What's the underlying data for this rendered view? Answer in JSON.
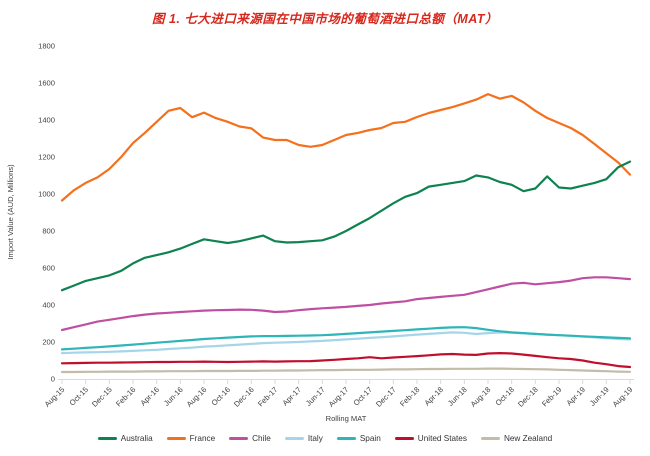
{
  "title": "图 1. 七大进口来源国在中国市场的葡萄酒进口总额（MAT）",
  "title_color": "#d7281d",
  "axis_color": "#d9d9d9",
  "chart_data": {
    "type": "line",
    "title": "图 1. 七大进口来源国在中国市场的葡萄酒进口总额（MAT）",
    "ylabel": "Import Value (AUD, Millions)",
    "xlabel": "Rolling MAT",
    "ylim": [
      0,
      1800
    ],
    "y_ticks": [
      0,
      200,
      400,
      600,
      800,
      1000,
      1200,
      1400,
      1600,
      1800
    ],
    "x_tick_labels": [
      "Aug-15",
      "Oct-15",
      "Dec-15",
      "Feb-16",
      "Apr-16",
      "Jun-16",
      "Aug-16",
      "Oct-16",
      "Dec-16",
      "Feb-17",
      "Apr-17",
      "Jun-17",
      "Aug-17",
      "Oct-17",
      "Dec-17",
      "Feb-18",
      "Apr-18",
      "Jun-18",
      "Aug-18",
      "Oct-18",
      "Dec-18",
      "Feb-19",
      "Apr-19",
      "Jun-19",
      "Aug-19"
    ],
    "x_resolution": "monthly (2 data points per labelled tick)",
    "grid": "off",
    "legend_position": "bottom",
    "series": [
      {
        "name": "Australia",
        "color": "#0e8250",
        "values": [
          480,
          505,
          530,
          545,
          560,
          585,
          625,
          655,
          670,
          685,
          705,
          730,
          755,
          745,
          735,
          745,
          760,
          775,
          745,
          738,
          740,
          745,
          750,
          770,
          800,
          835,
          870,
          910,
          950,
          985,
          1005,
          1040,
          1050,
          1060,
          1070,
          1100,
          1090,
          1065,
          1050,
          1015,
          1030,
          1095,
          1035,
          1030,
          1045,
          1060,
          1080,
          1145,
          1175
        ]
      },
      {
        "name": "France",
        "color": "#f4701d",
        "values": [
          965,
          1020,
          1060,
          1090,
          1135,
          1200,
          1275,
          1330,
          1390,
          1450,
          1465,
          1415,
          1440,
          1410,
          1390,
          1365,
          1355,
          1305,
          1292,
          1292,
          1265,
          1255,
          1265,
          1292,
          1319,
          1330,
          1346,
          1357,
          1384,
          1390,
          1416,
          1438,
          1454,
          1470,
          1490,
          1510,
          1540,
          1515,
          1530,
          1495,
          1450,
          1411,
          1384,
          1357,
          1319,
          1270,
          1220,
          1170,
          1105
        ]
      },
      {
        "name": "Chile",
        "color": "#bf4fa2",
        "values": [
          265,
          280,
          295,
          310,
          320,
          330,
          340,
          348,
          354,
          358,
          362,
          366,
          370,
          372,
          373,
          375,
          374,
          370,
          362,
          365,
          372,
          378,
          382,
          386,
          390,
          395,
          400,
          408,
          414,
          420,
          432,
          438,
          444,
          450,
          455,
          470,
          485,
          500,
          515,
          520,
          512,
          518,
          524,
          532,
          545,
          550,
          550,
          545,
          540
        ]
      },
      {
        "name": "Italy",
        "color": "#a5d5e8",
        "values": [
          140,
          142,
          144,
          145,
          147,
          149,
          152,
          155,
          158,
          162,
          166,
          170,
          175,
          178,
          182,
          186,
          190,
          194,
          196,
          198,
          200,
          203,
          206,
          210,
          214,
          218,
          222,
          226,
          230,
          235,
          240,
          244,
          248,
          252,
          250,
          243,
          248,
          252,
          250,
          247,
          243,
          240,
          237,
          233,
          229,
          225,
          221,
          217,
          214
        ]
      },
      {
        "name": "Spain",
        "color": "#2eb5b7",
        "values": [
          160,
          164,
          168,
          172,
          176,
          181,
          186,
          191,
          196,
          201,
          206,
          211,
          216,
          220,
          224,
          227,
          230,
          232,
          232,
          233,
          234,
          235,
          237,
          240,
          244,
          248,
          252,
          256,
          260,
          264,
          268,
          272,
          276,
          279,
          280,
          275,
          266,
          258,
          252,
          248,
          244,
          240,
          237,
          234,
          231,
          228,
          225,
          222,
          220
        ]
      },
      {
        "name": "United States",
        "color": "#c00f2d",
        "values": [
          85,
          86,
          87,
          88,
          88,
          89,
          90,
          91,
          92,
          92,
          93,
          93,
          94,
          93,
          92,
          93,
          94,
          95,
          94,
          95,
          96,
          97,
          100,
          104,
          108,
          112,
          118,
          112,
          116,
          120,
          124,
          128,
          133,
          135,
          132,
          130,
          138,
          140,
          138,
          132,
          125,
          118,
          112,
          108,
          100,
          88,
          80,
          70,
          65
        ]
      },
      {
        "name": "New Zealand",
        "color": "#c4bba8",
        "values": [
          38,
          38,
          39,
          39,
          40,
          40,
          40,
          41,
          41,
          42,
          42,
          42,
          43,
          43,
          43,
          44,
          44,
          45,
          45,
          46,
          46,
          47,
          48,
          48,
          49,
          50,
          50,
          51,
          52,
          52,
          53,
          54,
          54,
          55,
          55,
          55,
          56,
          56,
          55,
          54,
          53,
          52,
          50,
          48,
          46,
          44,
          42,
          40,
          39
        ]
      }
    ]
  }
}
